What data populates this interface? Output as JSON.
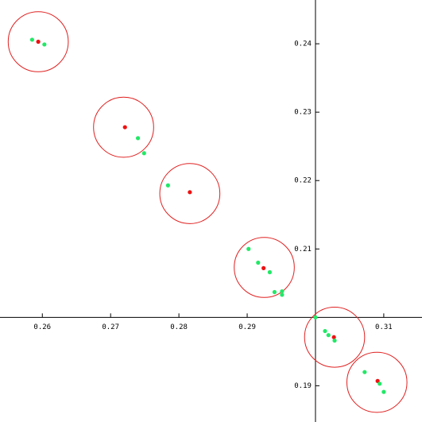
{
  "chart_data": {
    "type": "scatter",
    "xlim": [
      0.2538,
      0.3156
    ],
    "ylim": [
      0.1847,
      0.2464
    ],
    "xticks": [
      0.26,
      0.27,
      0.28,
      0.29,
      0.31
    ],
    "yticks": [
      0.19,
      0.21,
      0.22,
      0.23,
      0.24
    ],
    "axis_cross": [
      0.3,
      0.2
    ],
    "series": [
      {
        "color": "#ee1111",
        "x": [
          0.2594,
          0.2721,
          0.2816,
          0.2924,
          0.3027,
          0.3091
        ],
        "y": [
          0.2403,
          0.2278,
          0.2183,
          0.2072,
          0.1971,
          0.1907
        ]
      },
      {
        "color": "#22e866",
        "x": [
          0.2585,
          0.2603,
          0.274,
          0.2749,
          0.2784,
          0.2902,
          0.2916,
          0.2933,
          0.294,
          0.2951,
          0.2951,
          0.3,
          0.3014,
          0.3019,
          0.3028,
          0.3072,
          0.3094,
          0.31
        ],
        "y": [
          0.2406,
          0.2399,
          0.2262,
          0.224,
          0.2193,
          0.21,
          0.208,
          0.2066,
          0.2037,
          0.2038,
          0.2033,
          0.2,
          0.198,
          0.1974,
          0.1966,
          0.192,
          0.1903,
          0.1891
        ]
      }
    ],
    "circles": {
      "color": "#e02020",
      "radius": 0.0044,
      "x": [
        0.2594,
        0.2719,
        0.2816,
        0.2925,
        0.3028,
        0.309
      ],
      "y": [
        0.2403,
        0.2278,
        0.2181,
        0.2073,
        0.1971,
        0.1905
      ]
    }
  }
}
